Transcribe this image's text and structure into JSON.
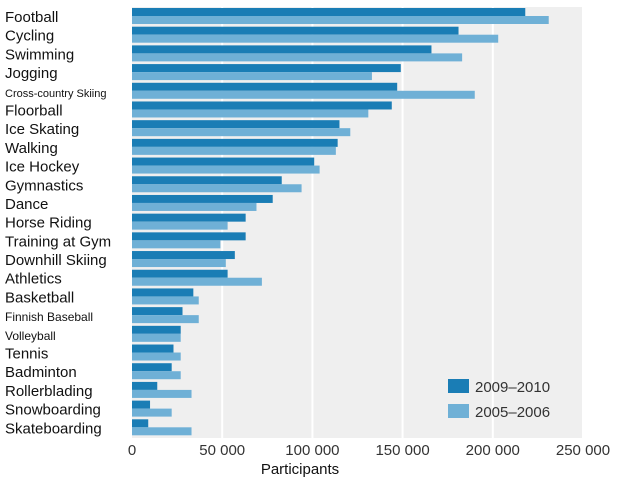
{
  "chart_data": {
    "type": "bar",
    "orientation": "horizontal",
    "title": "",
    "xlabel": "Participants",
    "ylabel": "",
    "xlim": [
      0,
      250000
    ],
    "xticks": [
      0,
      50000,
      100000,
      150000,
      200000,
      250000
    ],
    "xtick_labels": [
      "0",
      "50 000",
      "100 000",
      "150 000",
      "200 000",
      "250 000"
    ],
    "grid": true,
    "legend_position": "bottom-right",
    "categories": [
      "Football",
      "Cycling",
      "Swimming",
      "Jogging",
      "Cross-country Skiing",
      "Floorball",
      "Ice Skating",
      "Walking",
      "Ice Hockey",
      "Gymnastics",
      "Dance",
      "Horse Riding",
      "Training at Gym",
      "Downhill Skiing",
      "Athletics",
      "Basketball",
      "Finnish Baseball",
      "Volleyball",
      "Tennis",
      "Badminton",
      "Rollerblading",
      "Snowboarding",
      "Skateboarding"
    ],
    "series": [
      {
        "name": "2009–2010",
        "color": "#1a7db5",
        "values": [
          218000,
          181000,
          166000,
          149000,
          147000,
          144000,
          115000,
          114000,
          101000,
          83000,
          78000,
          63000,
          63000,
          57000,
          53000,
          34000,
          28000,
          27000,
          23000,
          22000,
          14000,
          10000,
          9000
        ]
      },
      {
        "name": "2005–2006",
        "color": "#6fb0d6",
        "values": [
          231000,
          203000,
          183000,
          133000,
          190000,
          131000,
          121000,
          113000,
          104000,
          94000,
          69000,
          53000,
          49000,
          52000,
          72000,
          37000,
          37000,
          27000,
          27000,
          27000,
          33000,
          22000,
          33000
        ]
      }
    ]
  },
  "colors": {
    "plot_background": "#efefef",
    "gridline": "#ffffff"
  }
}
